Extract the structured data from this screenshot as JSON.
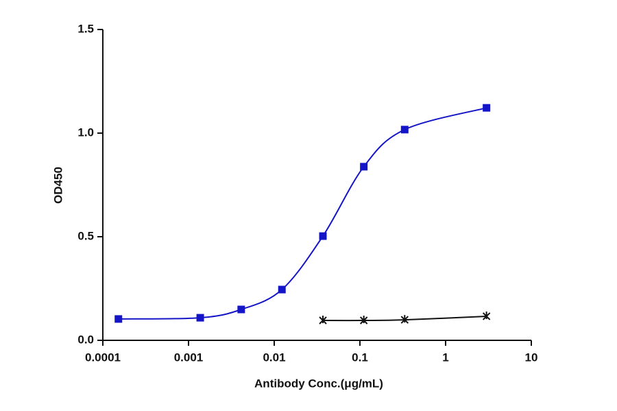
{
  "chart_data": {
    "type": "line",
    "x_label": "Antibody Conc.(μg/mL)",
    "y_label": "OD450",
    "xscale": "log",
    "xlim": [
      0.0001,
      10
    ],
    "xticks": [
      0.0001,
      0.001,
      0.01,
      0.1,
      1,
      10
    ],
    "ylim": [
      0,
      1.5
    ],
    "yticks": [
      {
        "value": 0,
        "label": "0.0"
      },
      {
        "value": 0.5,
        "label": "0.5"
      },
      {
        "value": 1,
        "label": "1.0"
      },
      {
        "value": 1.5,
        "label": "1.5"
      }
    ],
    "grid": false,
    "series": [
      {
        "color": "#1515c8",
        "marker": "square",
        "x": [
          0.000152,
          0.00137,
          0.00412,
          0.0123,
          0.037,
          0.111,
          0.333,
          3
        ],
        "values": [
          0.103,
          0.109,
          0.149,
          0.245,
          0.503,
          0.838,
          1.017,
          1.122
        ]
      },
      {
        "color": "#111111",
        "marker": "star",
        "x": [
          0.037,
          0.111,
          0.333,
          3
        ],
        "values": [
          0.096,
          0.096,
          0.099,
          0.116
        ]
      }
    ]
  }
}
